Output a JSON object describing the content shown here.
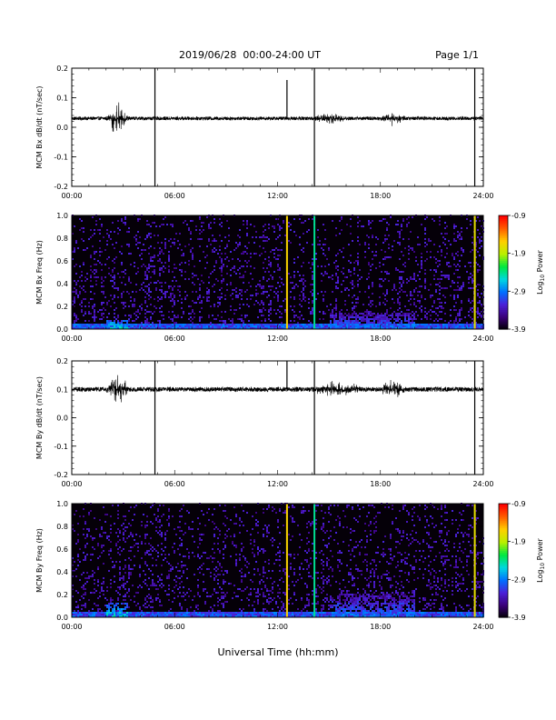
{
  "header": {
    "date_range": "2019/06/28  00:00-24:00 UT",
    "page": "Page 1/1"
  },
  "footer": {
    "xlabel": "Universal Time (hh:mm)"
  },
  "colorbar_label_html": "Log<tspan font-size='6' dy='2'>10</tspan><tspan dy='-2'> Power</tspan>",
  "colors": {
    "trace": "#000000",
    "spectrogram_background": "#050008",
    "spectrogram_noise": "#3d0c6b",
    "colormap": [
      "#000000",
      "#3a0078",
      "#4b20d8",
      "#0070ff",
      "#00d8e0",
      "#00e840",
      "#b8f000",
      "#ffd000",
      "#ff6000",
      "#ff0000"
    ]
  },
  "chart_data": [
    {
      "id": "bx-dbdt",
      "type": "line",
      "ylabel": "MCM Bx dB/dt (nT/sec)",
      "ylim": [
        -0.2,
        0.2
      ],
      "yticks": [
        "0.2",
        "0.1",
        "0.0",
        "-0.1",
        "-0.2"
      ],
      "yticks_values": [
        0.2,
        0.1,
        0.0,
        -0.1,
        -0.2
      ],
      "xlim_hours": [
        0,
        24
      ],
      "xticks": [
        "00:00",
        "06:00",
        "12:00",
        "18:00",
        "24:00"
      ],
      "baseline": 0.03,
      "noise_amplitude": 0.006,
      "bursts": [
        {
          "start_hr": 2.0,
          "end_hr": 3.3,
          "amplitude": 0.06
        },
        {
          "start_hr": 14.0,
          "end_hr": 16.0,
          "amplitude": 0.02
        },
        {
          "start_hr": 18.0,
          "end_hr": 19.5,
          "amplitude": 0.03
        }
      ],
      "spikes": [
        {
          "hour": 4.85,
          "y_min": -0.2,
          "y_max": 0.2
        },
        {
          "hour": 12.55,
          "y_min": 0.03,
          "y_max": 0.16
        },
        {
          "hour": 14.15,
          "y_min": -0.2,
          "y_max": 0.2
        },
        {
          "hour": 23.5,
          "y_min": -0.2,
          "y_max": 0.2
        }
      ]
    },
    {
      "id": "bx-spec",
      "type": "heatmap",
      "ylabel": "MCM Bx Freq (Hz)",
      "ylim": [
        0.0,
        1.0
      ],
      "yticks": [
        "1.0",
        "0.8",
        "0.6",
        "0.4",
        "0.2",
        "0.0"
      ],
      "yticks_values": [
        1.0,
        0.8,
        0.6,
        0.4,
        0.2,
        0.0
      ],
      "xlim_hours": [
        0,
        24
      ],
      "xticks": [
        "00:00",
        "06:00",
        "12:00",
        "18:00",
        "24:00"
      ],
      "colorbar": {
        "label": "Log10 Power",
        "range": [
          -3.9,
          -0.9
        ],
        "ticks": [
          "-0.9",
          "-1.9",
          "-2.9",
          "-3.9"
        ],
        "ticks_values": [
          -0.9,
          -1.9,
          -2.9,
          -3.9
        ]
      },
      "broadband_lines": [
        {
          "hour": 12.55,
          "log_power": -1.6
        },
        {
          "hour": 14.15,
          "log_power": -2.4
        },
        {
          "hour": 23.5,
          "log_power": -1.7
        }
      ],
      "low_freq_enhancements": [
        {
          "start_hr": 2.0,
          "end_hr": 3.3,
          "max_freq": 0.08,
          "log_power": -2.5
        },
        {
          "start_hr": 15.0,
          "end_hr": 20.0,
          "max_freq": 0.15,
          "log_power": -2.9
        }
      ]
    },
    {
      "id": "by-dbdt",
      "type": "line",
      "ylabel": "MCM By dB/dt (nT/sec)",
      "ylim": [
        -0.2,
        0.2
      ],
      "yticks": [
        "0.2",
        "0.1",
        "0.0",
        "-0.1",
        "-0.2"
      ],
      "yticks_values": [
        0.2,
        0.1,
        0.0,
        -0.1,
        -0.2
      ],
      "xlim_hours": [
        0,
        24
      ],
      "xticks": [
        "00:00",
        "06:00",
        "12:00",
        "18:00",
        "24:00"
      ],
      "baseline": 0.1,
      "noise_amplitude": 0.008,
      "bursts": [
        {
          "start_hr": 2.0,
          "end_hr": 3.3,
          "amplitude": 0.07
        },
        {
          "start_hr": 14.0,
          "end_hr": 17.0,
          "amplitude": 0.03
        },
        {
          "start_hr": 18.0,
          "end_hr": 19.5,
          "amplitude": 0.04
        }
      ],
      "spikes": [
        {
          "hour": 4.85,
          "y_min": -0.2,
          "y_max": 0.2
        },
        {
          "hour": 12.55,
          "y_min": 0.1,
          "y_max": 0.2
        },
        {
          "hour": 14.15,
          "y_min": -0.2,
          "y_max": 0.2
        },
        {
          "hour": 23.5,
          "y_min": -0.2,
          "y_max": 0.2
        }
      ]
    },
    {
      "id": "by-spec",
      "type": "heatmap",
      "ylabel": "MCM By Freq (Hz)",
      "ylim": [
        0.0,
        1.0
      ],
      "yticks": [
        "1.0",
        "0.8",
        "0.6",
        "0.4",
        "0.2",
        "0.0"
      ],
      "yticks_values": [
        1.0,
        0.8,
        0.6,
        0.4,
        0.2,
        0.0
      ],
      "xlim_hours": [
        0,
        24
      ],
      "xticks": [
        "00:00",
        "06:00",
        "12:00",
        "18:00",
        "24:00"
      ],
      "colorbar": {
        "label": "Log10 Power",
        "range": [
          -3.9,
          -0.9
        ],
        "ticks": [
          "-0.9",
          "-1.9",
          "-2.9",
          "-3.9"
        ],
        "ticks_values": [
          -0.9,
          -1.9,
          -2.9,
          -3.9
        ]
      },
      "broadband_lines": [
        {
          "hour": 12.55,
          "log_power": -1.6
        },
        {
          "hour": 14.15,
          "log_power": -2.4
        },
        {
          "hour": 23.5,
          "log_power": -1.7
        }
      ],
      "low_freq_enhancements": [
        {
          "start_hr": 2.0,
          "end_hr": 3.3,
          "max_freq": 0.12,
          "log_power": -2.5
        },
        {
          "start_hr": 15.0,
          "end_hr": 20.0,
          "max_freq": 0.2,
          "log_power": -2.9
        }
      ]
    }
  ]
}
